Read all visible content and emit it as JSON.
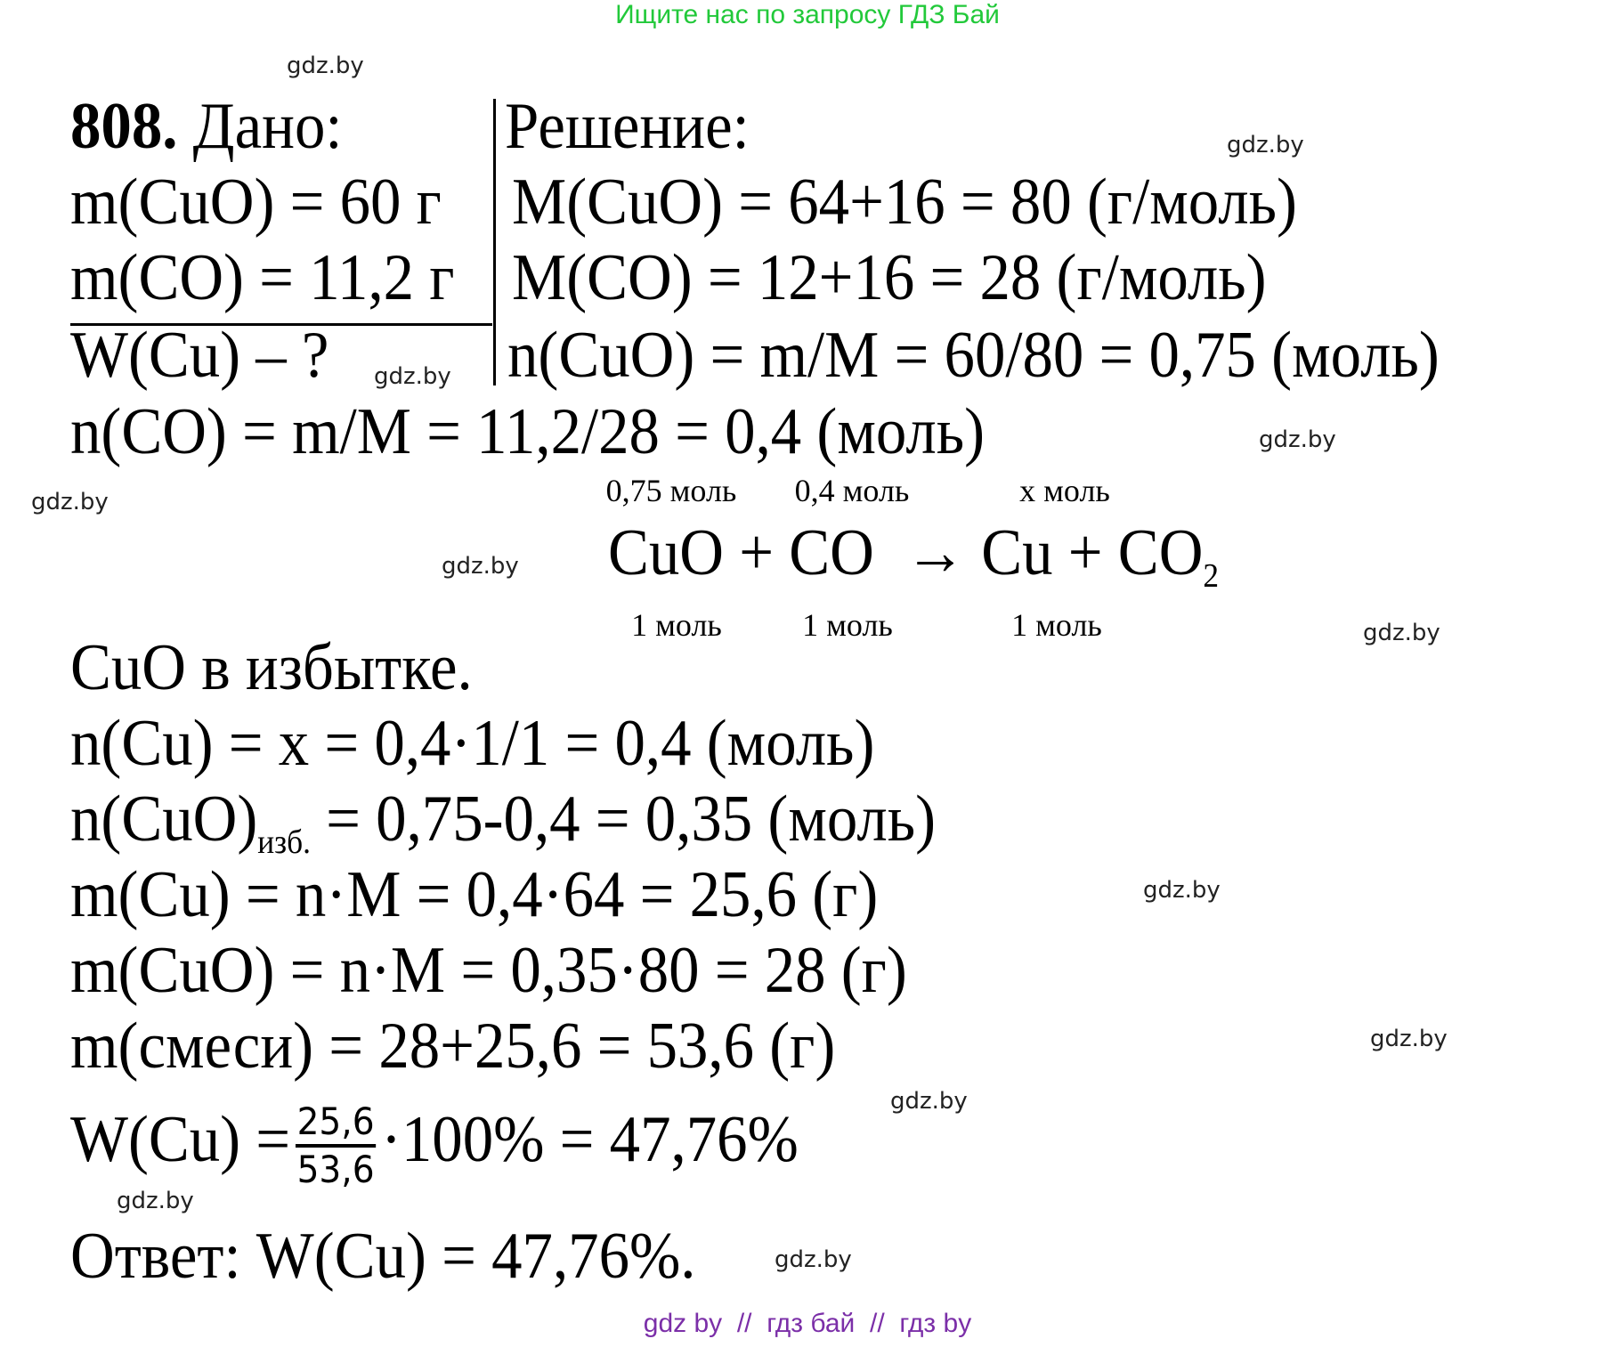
{
  "header": {
    "text": "Ищите нас по запросу ГДЗ Бай",
    "color": "#22c93a"
  },
  "problem": {
    "number": "808.",
    "given_label": "Дано:",
    "solution_label": "Решение:",
    "given": [
      "m(CuO) = 60 г",
      "m(CO) = 11,2 г"
    ],
    "find": "W(Cu) – ?",
    "solution_right": [
      "M(CuO) = 64+16 = 80 (г/моль)",
      "M(CO) = 12+16 = 28 (г/моль)",
      "n(CuO) = m/M = 60/80 = 0,75 (моль)"
    ],
    "line_nco": "n(CO) = m/M = 11,2/28 = 0,4 (моль)",
    "equation": {
      "main": "CuO + CO  → Cu + CO",
      "sub": "2",
      "above": [
        "0,75 моль",
        "0,4 моль",
        "х моль"
      ],
      "below": [
        "1 моль",
        "1 моль",
        "1 моль"
      ]
    },
    "excess": "CuO в избытке.",
    "line_ncu": "n(Cu) = x = 0,4·1/1 = 0,4 (моль)",
    "line_ncuo_pre": "n(CuO)",
    "line_ncuo_sub": "изб.",
    "line_ncuo_post": " = 0,75-0,4 = 0,35 (моль)",
    "line_mcu": "m(Cu) = n·M = 0,4·64 = 25,6 (г)",
    "line_mcuo": "m(CuO) = n·M = 0,35·80 = 28 (г)",
    "line_mmix": "m(смеси) = 28+25,6 = 53,6 (г)",
    "w_pre": "W(Cu) =",
    "w_num": "25,6",
    "w_den": "53,6",
    "w_post": "·100% = 47,76%",
    "answer": "Ответ: W(Cu) = 47,76%."
  },
  "watermark": "gdz.by",
  "footer": {
    "text": "gdz by  //  гдз бай  //  гдз by",
    "color": "#7b2fa8"
  }
}
